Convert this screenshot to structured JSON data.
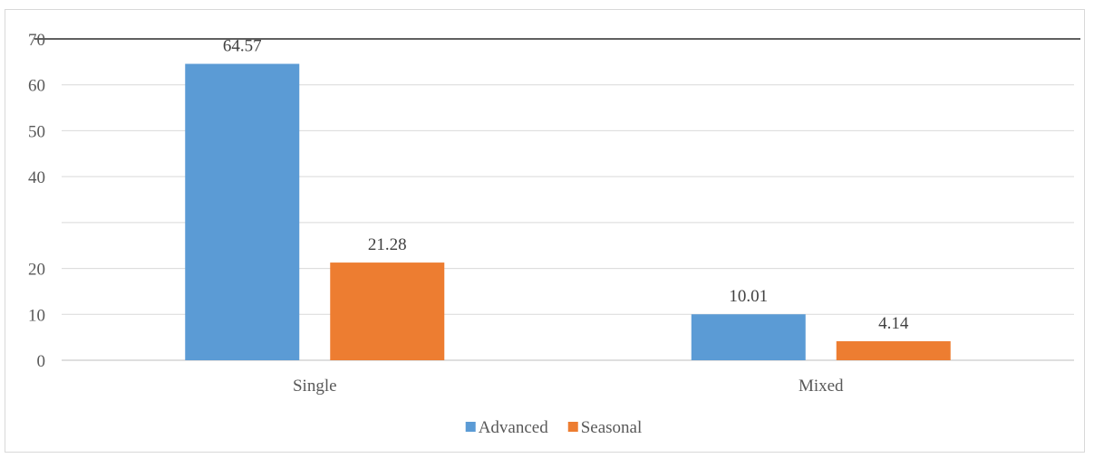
{
  "chart_data": {
    "type": "bar",
    "title": "",
    "xlabel": "",
    "ylabel": "",
    "categories": [
      "Single",
      "Mixed"
    ],
    "series": [
      {
        "name": "Advanced",
        "values": [
          64.57,
          10.01
        ],
        "color": "#5b9bd5"
      },
      {
        "name": "Seasonal",
        "values": [
          21.28,
          4.14
        ],
        "color": "#ed7d31"
      }
    ],
    "ylim": [
      0,
      70
    ],
    "y_ticks": [
      {
        "value": 0,
        "label": "0"
      },
      {
        "value": 10,
        "label": "10"
      },
      {
        "value": 20,
        "label": "20"
      },
      {
        "value": 30,
        "label": ""
      },
      {
        "value": 40,
        "label": "40"
      },
      {
        "value": 50,
        "label": "50"
      },
      {
        "value": 60,
        "label": "60"
      },
      {
        "value": 70,
        "label": "70"
      }
    ],
    "data_labels": true,
    "grid": true,
    "legend_position": "bottom"
  }
}
